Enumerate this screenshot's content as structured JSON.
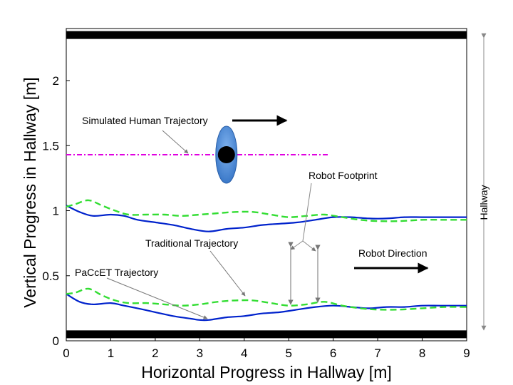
{
  "chart_data": {
    "type": "line",
    "xlabel": "Horizontal Progress in Hallway [m]",
    "ylabel": "Vertical Progress in Hallway [m]",
    "xlim": [
      0,
      9
    ],
    "ylim": [
      0,
      2.4
    ],
    "xticks": [
      "0",
      "1",
      "2",
      "3",
      "4",
      "5",
      "6",
      "7",
      "8",
      "9"
    ],
    "yticks": [
      {
        "value": 0,
        "label": "0"
      },
      {
        "value": 0.5,
        "label": "0.5"
      },
      {
        "value": 1,
        "label": "1"
      },
      {
        "value": 1.5,
        "label": "1.5"
      },
      {
        "value": 2,
        "label": "2"
      }
    ],
    "grid": false,
    "walls": [
      0.05,
      2.35
    ],
    "human_trajectory": {
      "x": [
        0,
        5.9
      ],
      "y": [
        1.43,
        1.43
      ],
      "color": "#e000e0",
      "human_position": [
        3.6,
        1.43
      ]
    },
    "series": [
      {
        "role": "PaCcET trajectory, upper footprint edge",
        "color": "#0022cc",
        "x": [
          0,
          0.3,
          0.6,
          1.0,
          1.3,
          1.6,
          2.0,
          2.4,
          2.8,
          3.2,
          3.6,
          4.0,
          4.4,
          4.8,
          5.2,
          5.6,
          6.0,
          6.4,
          6.8,
          7.2,
          7.6,
          8.0,
          8.4,
          8.8,
          9.0
        ],
        "y": [
          1.04,
          0.99,
          0.96,
          0.97,
          0.96,
          0.93,
          0.91,
          0.89,
          0.86,
          0.84,
          0.86,
          0.87,
          0.89,
          0.9,
          0.91,
          0.93,
          0.95,
          0.95,
          0.94,
          0.94,
          0.95,
          0.95,
          0.95,
          0.95,
          0.95
        ]
      },
      {
        "role": "PaCcET trajectory, lower footprint edge",
        "color": "#0022cc",
        "x": [
          0,
          0.3,
          0.6,
          1.0,
          1.3,
          1.6,
          2.0,
          2.4,
          2.8,
          3.0,
          3.2,
          3.6,
          4.0,
          4.4,
          4.8,
          5.2,
          5.6,
          6.0,
          6.4,
          6.8,
          7.2,
          7.6,
          8.0,
          8.4,
          8.8,
          9.0
        ],
        "y": [
          0.36,
          0.3,
          0.28,
          0.29,
          0.27,
          0.25,
          0.22,
          0.19,
          0.17,
          0.16,
          0.16,
          0.18,
          0.19,
          0.21,
          0.22,
          0.24,
          0.26,
          0.27,
          0.26,
          0.25,
          0.26,
          0.26,
          0.27,
          0.27,
          0.27,
          0.27
        ]
      },
      {
        "role": "Traditional trajectory, upper footprint edge",
        "color": "#33dd33",
        "x": [
          0,
          0.2,
          0.5,
          0.8,
          1.1,
          1.4,
          1.8,
          2.2,
          2.6,
          3.0,
          3.4,
          3.8,
          4.2,
          4.6,
          5.0,
          5.4,
          5.8,
          6.2,
          6.6,
          7.0,
          7.5,
          8.0,
          8.5,
          9.0
        ],
        "y": [
          1.03,
          1.05,
          1.08,
          1.04,
          1.0,
          0.97,
          0.97,
          0.97,
          0.96,
          0.97,
          0.98,
          0.99,
          0.99,
          0.97,
          0.95,
          0.96,
          0.97,
          0.95,
          0.93,
          0.92,
          0.92,
          0.93,
          0.93,
          0.93
        ]
      },
      {
        "role": "Traditional trajectory, lower footprint edge",
        "color": "#33dd33",
        "x": [
          0,
          0.2,
          0.5,
          0.8,
          1.1,
          1.4,
          1.8,
          2.2,
          2.6,
          3.0,
          3.4,
          3.8,
          4.2,
          4.6,
          5.0,
          5.4,
          5.8,
          6.2,
          6.6,
          7.0,
          7.5,
          8.0,
          8.5,
          9.0
        ],
        "y": [
          0.36,
          0.37,
          0.4,
          0.35,
          0.31,
          0.29,
          0.29,
          0.28,
          0.27,
          0.28,
          0.3,
          0.31,
          0.31,
          0.29,
          0.27,
          0.28,
          0.3,
          0.27,
          0.25,
          0.24,
          0.24,
          0.25,
          0.26,
          0.26
        ]
      }
    ],
    "annotations": {
      "human_label": "Simulated Human Trajectory",
      "footprint_label": "Robot Footprint",
      "traditional_label": "Traditional Trajectory",
      "direction_label": "Robot Direction",
      "paccet_label": "PaCcET Trajectory",
      "hallway_label": "Hallway"
    }
  }
}
